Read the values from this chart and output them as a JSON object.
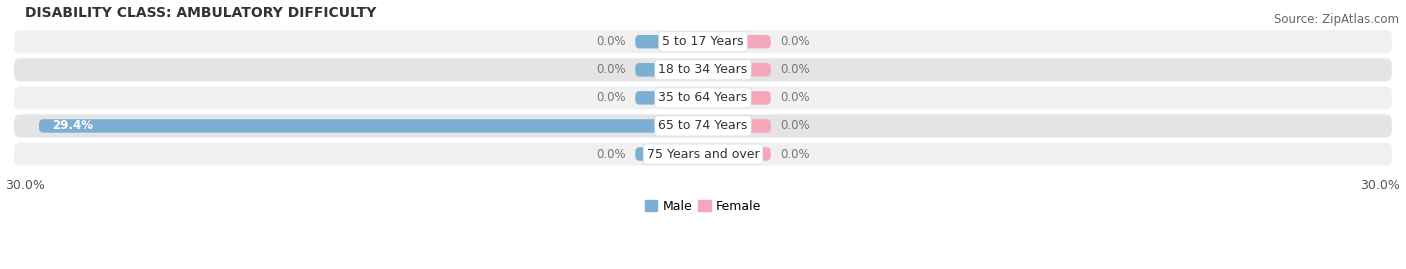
{
  "title": "DISABILITY CLASS: AMBULATORY DIFFICULTY",
  "source": "Source: ZipAtlas.com",
  "categories": [
    "5 to 17 Years",
    "18 to 34 Years",
    "35 to 64 Years",
    "65 to 74 Years",
    "75 Years and over"
  ],
  "male_values": [
    0.0,
    0.0,
    0.0,
    29.4,
    0.0
  ],
  "female_values": [
    0.0,
    0.0,
    0.0,
    0.0,
    0.0
  ],
  "default_bar_width": 3.0,
  "xlim": 30.0,
  "male_color": "#7bafd4",
  "female_color": "#f4a7b9",
  "row_bg_even": "#f0f0f0",
  "row_bg_odd": "#e4e4e4",
  "title_fontsize": 10,
  "source_fontsize": 8.5,
  "tick_fontsize": 9,
  "bar_label_fontsize": 8.5,
  "category_fontsize": 9,
  "legend_fontsize": 9
}
